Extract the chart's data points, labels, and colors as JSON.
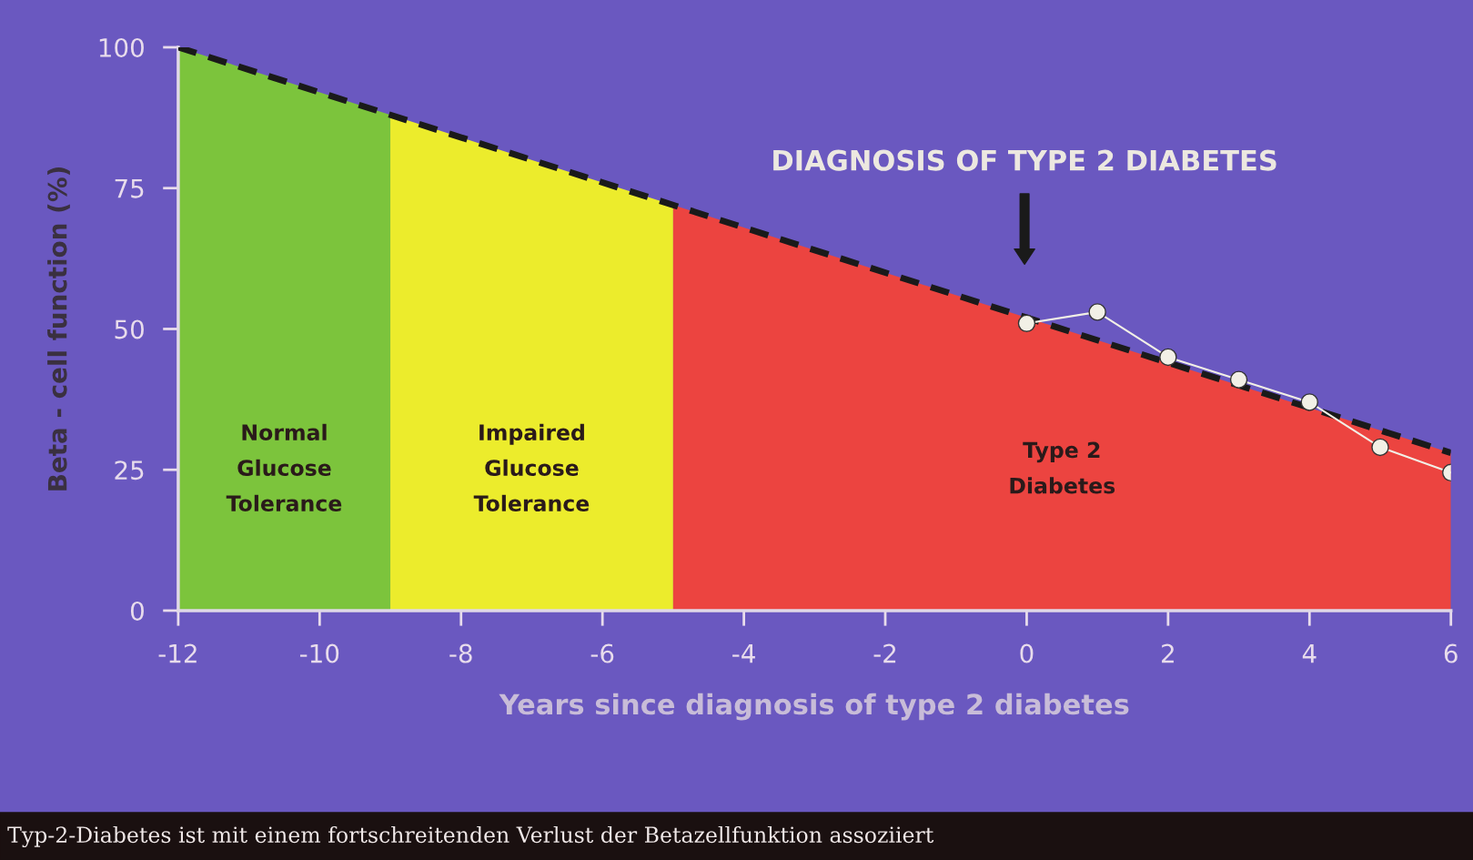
{
  "chart_data": {
    "type": "line",
    "xlabel": "Years since diagnosis of type 2 diabetes",
    "ylabel": "Beta - cell function (%)",
    "xlim": [
      -12,
      6
    ],
    "xticks": [
      -12,
      -10,
      -8,
      -6,
      -4,
      -2,
      0,
      2,
      4,
      6
    ],
    "ylim": [
      0,
      100
    ],
    "yticks": [
      0,
      25,
      50,
      75,
      100
    ],
    "grid": false,
    "series": [
      {
        "color": "#1a1a1a",
        "line_style": "dashed",
        "marker": "none",
        "x": [
          -12,
          6
        ],
        "values": [
          100,
          28
        ]
      },
      {
        "color": "#f2f0e6",
        "line_style": "solid",
        "marker": "circle",
        "x": [
          0,
          1,
          2,
          3,
          4,
          5,
          6
        ],
        "values": [
          51,
          53,
          45,
          41,
          37,
          29,
          24.5
        ]
      }
    ],
    "bands": [
      {
        "axis": "x",
        "from": -12,
        "to": -9,
        "label": "Normal\nGlucose\nTolerance",
        "color": "#7cc43c"
      },
      {
        "axis": "x",
        "from": -9,
        "to": -5,
        "label": "Impaired\nGlucose\nTolerance",
        "color": "#ecec2c"
      },
      {
        "axis": "x",
        "from": -5,
        "to": 6,
        "label": "Type 2\nDiabetes",
        "color": "#ec4440"
      }
    ],
    "annotations": [
      "DIAGNOSIS OF TYPE 2 DIABETES",
      "Typ-2-Diabetes ist mit einem fortschreitenden Verlust der Betazellfunktion assoziiert"
    ]
  }
}
